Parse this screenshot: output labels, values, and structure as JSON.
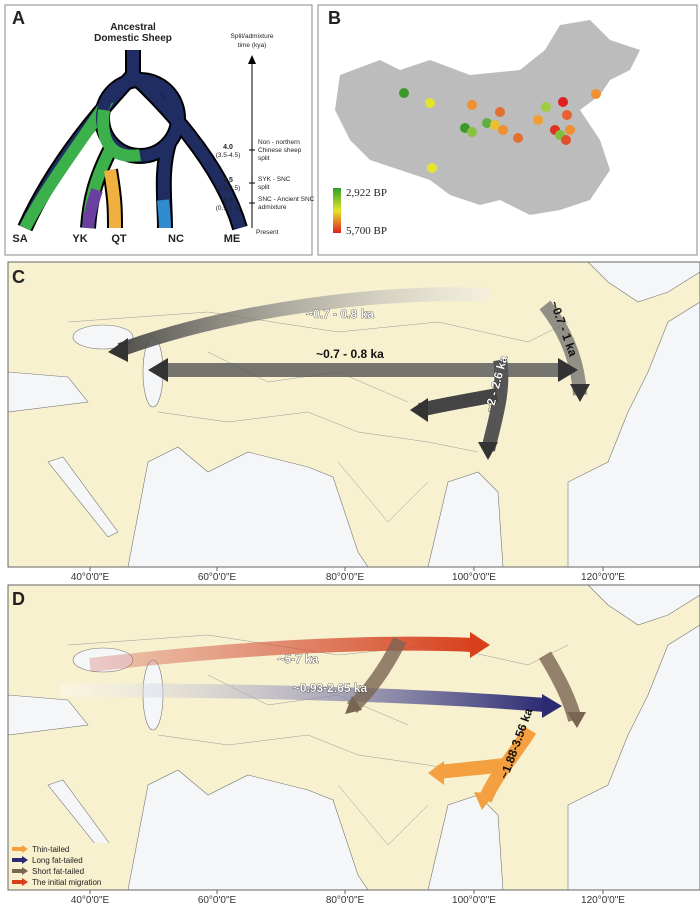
{
  "panel_a": {
    "label": "A",
    "root": [
      "Ancestral",
      "Domestic Sheep"
    ],
    "axis_title": [
      "Split/admixture",
      "time (kya)"
    ],
    "events": [
      {
        "time": "4.0",
        "range": "(3.5-4.5)",
        "text": [
          "Non - northern",
          "Chinese sheep",
          "split"
        ]
      },
      {
        "time": "2.5",
        "range": "(1.8-3.5)",
        "text": [
          "SYK - SNC",
          "split"
        ]
      },
      {
        "time": "1.6",
        "range": "(0.9-2.6)",
        "text": [
          "SNC - Ancient SNC",
          "admixture"
        ]
      }
    ],
    "present": "Present",
    "groups": [
      "SA",
      "YK",
      "QT",
      "NC",
      "ME"
    ]
  },
  "panel_b": {
    "label": "B",
    "legend": [
      "2,922 BP",
      "5,700 BP"
    ]
  },
  "panel_c": {
    "label": "C",
    "arrows": [
      "~0.7 - 0.8 ka",
      "~0.7 - 0.8 ka",
      "~0.7 - 1 ka",
      "~2 - 2.6 ka"
    ]
  },
  "panel_d": {
    "label": "D",
    "arrows": [
      "~5-7 ka",
      "~0.93-2.65 ka",
      "~1.88-3.56 ka"
    ],
    "legend": [
      "Thin-tailed",
      "Long fat-tailed",
      "Short fat-tailed",
      "The initial migration"
    ]
  },
  "lon_ticks": [
    "40°0'0\"E",
    "60°0'0\"E",
    "80°0'0\"E",
    "100°0'0\"E",
    "120°0'0\"E"
  ]
}
